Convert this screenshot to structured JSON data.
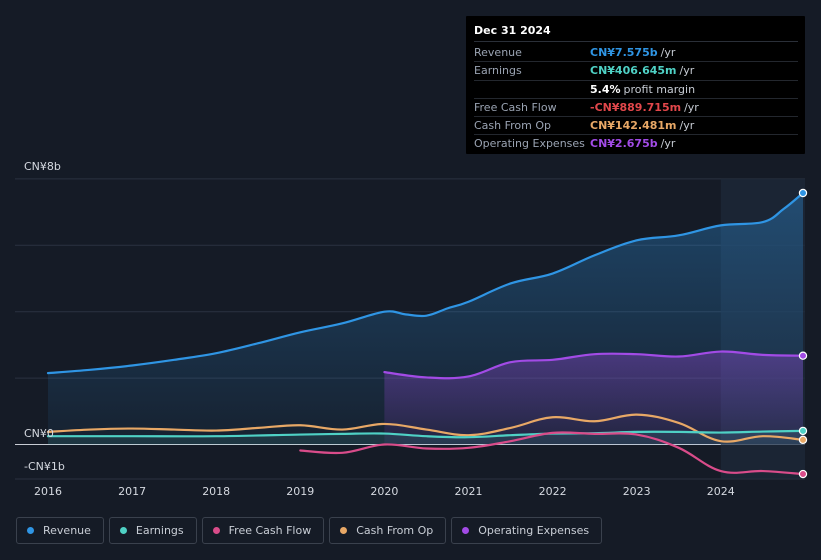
{
  "colors": {
    "revenue": "#2f95e4",
    "earnings": "#4fd1c5",
    "free_cash_flow": "#d94c8a",
    "cash_from_op": "#e8a866",
    "operating_expenses": "#a24be6"
  },
  "tooltip": {
    "date": "Dec 31 2024",
    "rows": [
      {
        "label": "Revenue",
        "value": "CN¥7.575b",
        "unit": "/yr",
        "color": "#2f95e4"
      },
      {
        "label": "Earnings",
        "value": "CN¥406.645m",
        "unit": "/yr",
        "color": "#4fd1c5"
      },
      {
        "label": "",
        "value": "5.4%",
        "unit": "profit margin",
        "color": "#ffffff"
      },
      {
        "label": "Free Cash Flow",
        "value": "-CN¥889.715m",
        "unit": "/yr",
        "color": "#e2474b"
      },
      {
        "label": "Cash From Op",
        "value": "CN¥142.481m",
        "unit": "/yr",
        "color": "#e8a866"
      },
      {
        "label": "Operating Expenses",
        "value": "CN¥2.675b",
        "unit": "/yr",
        "color": "#a24be6"
      }
    ]
  },
  "chart_data": {
    "type": "line",
    "title": "",
    "xlabel": "",
    "ylabel": "",
    "ylim": [
      -1,
      8
    ],
    "y_tick_labels": [
      "CN¥8b",
      "CN¥0",
      "-CN¥1b"
    ],
    "x_tick_labels": [
      "2016",
      "2017",
      "2018",
      "2019",
      "2020",
      "2021",
      "2022",
      "2023",
      "2024"
    ],
    "units": "CN¥ billions",
    "series": [
      {
        "name": "Revenue",
        "key": "revenue",
        "x": [
          2016.0,
          2016.5,
          2017.0,
          2017.5,
          2018.0,
          2018.5,
          2019.0,
          2019.5,
          2020.0,
          2020.25,
          2020.5,
          2020.75,
          2021.0,
          2021.5,
          2022.0,
          2022.5,
          2023.0,
          2023.5,
          2024.0,
          2024.5,
          2024.75,
          2025.0
        ],
        "values": [
          2.15,
          2.25,
          2.38,
          2.55,
          2.75,
          3.05,
          3.38,
          3.65,
          4.0,
          3.92,
          3.88,
          4.1,
          4.3,
          4.85,
          5.15,
          5.7,
          6.15,
          6.3,
          6.6,
          6.7,
          7.1,
          7.575
        ]
      },
      {
        "name": "Earnings",
        "key": "earnings",
        "x": [
          2016.0,
          2017.0,
          2018.0,
          2019.0,
          2019.5,
          2020.0,
          2020.5,
          2021.0,
          2021.5,
          2022.0,
          2022.5,
          2023.0,
          2023.5,
          2024.0,
          2024.5,
          2025.0
        ],
        "values": [
          0.25,
          0.25,
          0.25,
          0.3,
          0.32,
          0.33,
          0.25,
          0.22,
          0.28,
          0.33,
          0.34,
          0.38,
          0.38,
          0.36,
          0.39,
          0.41
        ]
      },
      {
        "name": "Free Cash Flow",
        "key": "free_cash_flow",
        "x": [
          2019.0,
          2019.5,
          2020.0,
          2020.5,
          2021.0,
          2021.5,
          2022.0,
          2022.5,
          2023.0,
          2023.5,
          2024.0,
          2024.5,
          2025.0
        ],
        "values": [
          -0.18,
          -0.25,
          0.0,
          -0.12,
          -0.1,
          0.1,
          0.35,
          0.32,
          0.3,
          -0.1,
          -0.8,
          -0.8,
          -0.89
        ]
      },
      {
        "name": "Cash From Op",
        "key": "cash_from_op",
        "x": [
          2016.0,
          2016.5,
          2017.0,
          2017.5,
          2018.0,
          2018.5,
          2019.0,
          2019.5,
          2020.0,
          2020.5,
          2021.0,
          2021.5,
          2022.0,
          2022.5,
          2023.0,
          2023.5,
          2024.0,
          2024.5,
          2025.0
        ],
        "values": [
          0.38,
          0.45,
          0.48,
          0.45,
          0.42,
          0.5,
          0.58,
          0.45,
          0.62,
          0.45,
          0.28,
          0.5,
          0.82,
          0.7,
          0.9,
          0.65,
          0.1,
          0.25,
          0.14
        ]
      },
      {
        "name": "Operating Expenses",
        "key": "operating_expenses",
        "x": [
          2020.0,
          2020.5,
          2021.0,
          2021.5,
          2022.0,
          2022.5,
          2023.0,
          2023.5,
          2024.0,
          2024.5,
          2025.0
        ],
        "values": [
          2.18,
          2.02,
          2.05,
          2.48,
          2.55,
          2.72,
          2.72,
          2.65,
          2.8,
          2.7,
          2.675
        ]
      }
    ]
  },
  "legend": [
    {
      "label": "Revenue",
      "key": "revenue"
    },
    {
      "label": "Earnings",
      "key": "earnings"
    },
    {
      "label": "Free Cash Flow",
      "key": "free_cash_flow"
    },
    {
      "label": "Cash From Op",
      "key": "cash_from_op"
    },
    {
      "label": "Operating Expenses",
      "key": "operating_expenses"
    }
  ]
}
